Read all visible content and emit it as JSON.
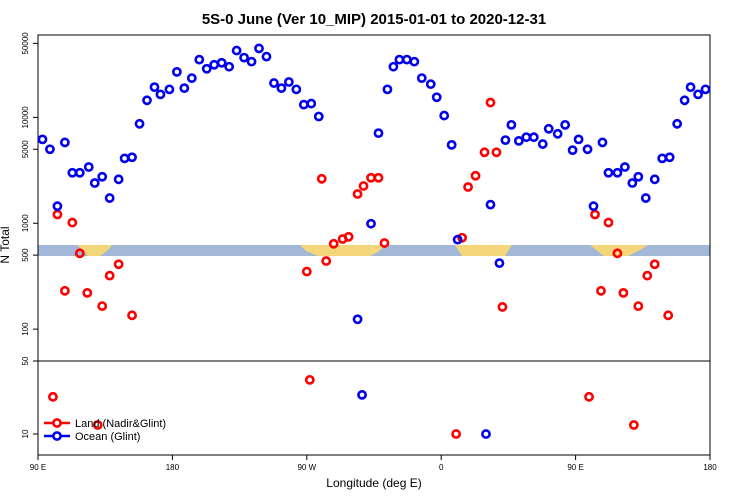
{
  "chart_data": {
    "type": "scatter",
    "title": "5S-0 June (Ver 10_MIP)   2015-01-01 to 2020-12-31",
    "x_label": "Longitude (deg E)",
    "y_label": "N Total",
    "xlim": [
      90,
      540
    ],
    "xticks": [
      {
        "value": 90,
        "label": "90 E"
      },
      180,
      {
        "value": 270,
        "label": "90 W"
      },
      {
        "value": 360,
        "label": "0"
      },
      {
        "value": 450,
        "label": "90 E"
      },
      {
        "value": 540,
        "label": "180"
      }
    ],
    "log_y": true,
    "panels": [
      {
        "ylim": [
          50,
          60000
        ],
        "yticks": [
          100,
          500,
          1000,
          5000,
          10000,
          50000
        ]
      },
      {
        "ylim": [
          6.3,
          50
        ],
        "yticks": [
          10,
          50
        ]
      }
    ],
    "legend": "bottom-left",
    "series": [
      {
        "name": "Land (Nadir&Glint)",
        "color": "#ff0000",
        "x": [
          100,
          103,
          108,
          113,
          118,
          123,
          130,
          133,
          138,
          144,
          153,
          270,
          272,
          280,
          283,
          288,
          294,
          298,
          304,
          308,
          313,
          318,
          322,
          370,
          374,
          378,
          383,
          389,
          393,
          397,
          401,
          459,
          463,
          467,
          472,
          478,
          482,
          489,
          492,
          498,
          503,
          512
        ],
        "values": [
          22.7,
          1210,
          230,
          1015,
          520,
          220,
          12.2,
          165,
          320,
          410,
          135,
          350,
          33,
          2630,
          440,
          640,
          710,
          745,
          1890,
          2250,
          2690,
          2690,
          650,
          10,
          730,
          2200,
          2810,
          4680,
          13800,
          4680,
          162,
          22.7,
          1210,
          230,
          1015,
          520,
          220,
          12.2,
          165,
          320,
          410,
          135
        ]
      },
      {
        "name": "Ocean (Glint)",
        "color": "#0000ee",
        "x": [
          93,
          98,
          103,
          108,
          113,
          118,
          124,
          128,
          133,
          138,
          144,
          148,
          153,
          158,
          163,
          168,
          172,
          178,
          183,
          188,
          193,
          198,
          203,
          208,
          213,
          218,
          223,
          228,
          233,
          238,
          243,
          248,
          253,
          258,
          263,
          268,
          273,
          278,
          304,
          307,
          313,
          318,
          324,
          328,
          332,
          337,
          342,
          347,
          353,
          357,
          362,
          367,
          371,
          390,
          393,
          399,
          403,
          407,
          412,
          417,
          422,
          428,
          432,
          438,
          443,
          448,
          452,
          458,
          462,
          468,
          472,
          478,
          483,
          488,
          492,
          497,
          503,
          508,
          513,
          518,
          523,
          527,
          532,
          537
        ],
        "values": [
          6200,
          5000,
          1450,
          5800,
          3000,
          3000,
          3400,
          2400,
          2750,
          1730,
          2600,
          4100,
          4200,
          8700,
          14500,
          19300,
          16500,
          18400,
          26900,
          18900,
          23500,
          35100,
          28800,
          31400,
          32800,
          30100,
          42800,
          36700,
          33600,
          44800,
          37500,
          21100,
          18900,
          21600,
          18400,
          13200,
          13500,
          10200,
          124,
          23.7,
          990,
          7100,
          18400,
          30100,
          35100,
          35100,
          33600,
          23500,
          20600,
          15500,
          10400,
          5500,
          700,
          10,
          1500,
          420,
          6100,
          8500,
          6000,
          6500,
          6500,
          5600,
          7800,
          7000,
          8500,
          4900,
          6200,
          5000,
          1450,
          5800,
          3000,
          3000,
          3400,
          2400,
          2750,
          1730,
          2600,
          4100,
          4200,
          8700,
          14500,
          19300,
          16500,
          18400
        ]
      }
    ]
  }
}
